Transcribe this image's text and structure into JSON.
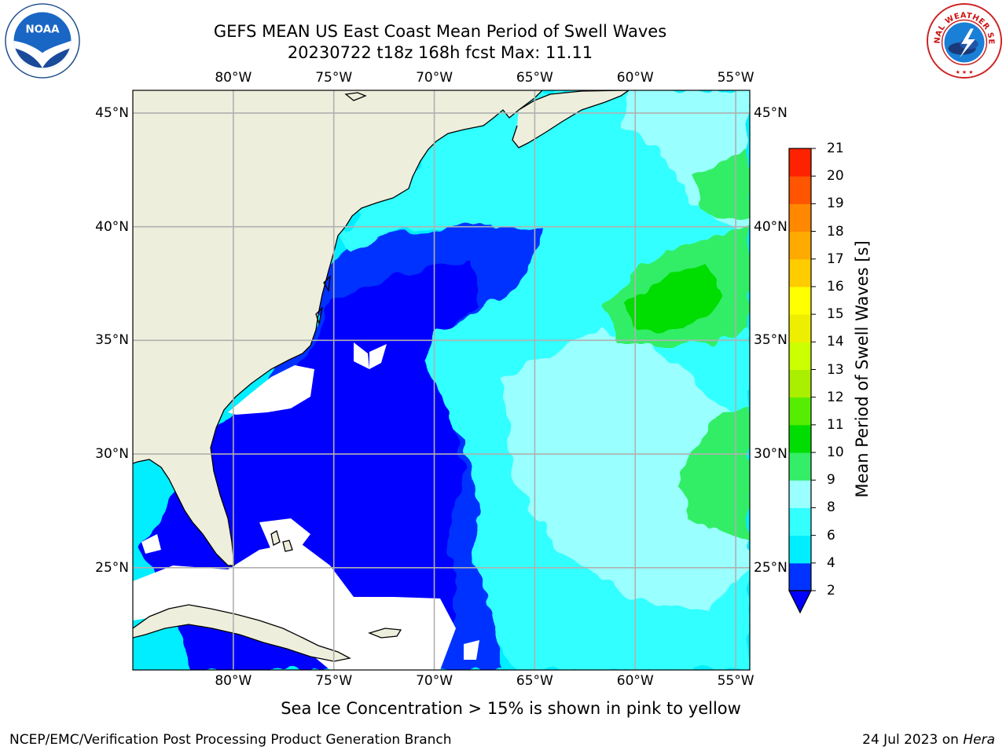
{
  "title": {
    "line1": "GEFS MEAN US East Coast Mean Period of Swell Waves",
    "line2": "20230722 t18z 168h fcst   Max: 11.11"
  },
  "map": {
    "lon_ticks": [
      "80°W",
      "75°W",
      "70°W",
      "65°W",
      "60°W",
      "55°W"
    ],
    "lat_ticks": [
      "45°N",
      "40°N",
      "35°N",
      "30°N",
      "25°N"
    ],
    "lon_range": [
      -85,
      -54.3
    ],
    "lat_range": [
      20.5,
      46
    ],
    "colors": {
      "land": "#eeeedc",
      "no_data": "#ffffff",
      "grid": "#b0b0b0",
      "coast": "#000000"
    }
  },
  "colorbar": {
    "label": "Mean Period of Swell Waves [s]",
    "ticks": [
      "2",
      "4",
      "6",
      "8",
      "9",
      "10",
      "11",
      "12",
      "13",
      "14",
      "15",
      "16",
      "17",
      "18",
      "19",
      "20",
      "21"
    ],
    "colors": [
      "#0033ff",
      "#00eeff",
      "#33ffff",
      "#99ffff",
      "#33ee66",
      "#00dd00",
      "#55ee00",
      "#aaee00",
      "#ccff00",
      "#eeee00",
      "#ffff00",
      "#ffcc00",
      "#ffaa00",
      "#ff8800",
      "#ff5500",
      "#ff2200",
      "#ff0000"
    ],
    "extend_color": "#0000ff"
  },
  "footnote": "Sea Ice Concentration > 15% is shown in pink to yellow",
  "credit": "NCEP/EMC/Verification Post Processing Product Generation Branch",
  "date": "24 Jul 2023 on ",
  "host": "Hera",
  "logos": {
    "left": "NOAA",
    "right": "NATIONAL WEATHER SERVICE"
  }
}
